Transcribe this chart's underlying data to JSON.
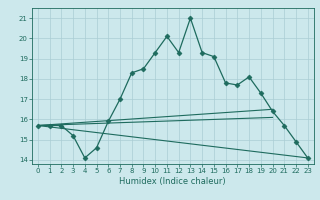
{
  "xlabel": "Humidex (Indice chaleur)",
  "bg_color": "#cce8ec",
  "grid_color": "#aacdd4",
  "line_color": "#1e6b5e",
  "xlim": [
    -0.5,
    23.5
  ],
  "ylim": [
    13.8,
    21.5
  ],
  "xticks": [
    0,
    1,
    2,
    3,
    4,
    5,
    6,
    7,
    8,
    9,
    10,
    11,
    12,
    13,
    14,
    15,
    16,
    17,
    18,
    19,
    20,
    21,
    22,
    23
  ],
  "yticks": [
    14,
    15,
    16,
    17,
    18,
    19,
    20,
    21
  ],
  "main_x": [
    0,
    1,
    2,
    3,
    4,
    5,
    6,
    7,
    8,
    9,
    10,
    11,
    12,
    13,
    14,
    15,
    16,
    17,
    18,
    19,
    20,
    21,
    22,
    23
  ],
  "main_y": [
    15.7,
    15.7,
    15.7,
    15.2,
    14.1,
    14.6,
    15.9,
    17.0,
    18.3,
    18.5,
    19.3,
    20.1,
    19.3,
    21.0,
    19.3,
    19.1,
    17.8,
    17.7,
    18.1,
    17.3,
    16.4,
    15.7,
    14.9,
    14.1
  ],
  "line2_x": [
    0,
    20
  ],
  "line2_y": [
    15.7,
    16.5
  ],
  "line3_x": [
    0,
    20
  ],
  "line3_y": [
    15.7,
    16.1
  ],
  "line4_x": [
    0,
    23
  ],
  "line4_y": [
    15.7,
    14.1
  ]
}
